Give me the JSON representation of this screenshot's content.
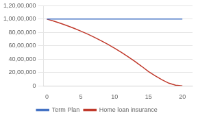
{
  "chart_data": {
    "type": "line",
    "series": [
      {
        "name": "Term Plan",
        "color": "#4472c4",
        "x": [
          0,
          20
        ],
        "values": [
          10000000,
          10000000
        ]
      },
      {
        "name": "Home loan insurance",
        "color": "#c0392b",
        "x": [
          0,
          1,
          2,
          3,
          4,
          5,
          6,
          7,
          8,
          9,
          10,
          11,
          12,
          13,
          14,
          15,
          16,
          17,
          18,
          19,
          20
        ],
        "values": [
          10000000,
          9700000,
          9370000,
          9010000,
          8620000,
          8200000,
          7760000,
          7280000,
          6770000,
          6220000,
          5640000,
          5020000,
          4360000,
          3660000,
          2920000,
          2140000,
          1500000,
          900000,
          400000,
          100000,
          0
        ]
      }
    ],
    "xlim": [
      -0.5,
      21.5
    ],
    "xticks": [
      0,
      5,
      10,
      15,
      20
    ],
    "ylim": [
      0,
      12000000
    ],
    "yticks": [
      0,
      {
        "value": 2000000,
        "label": "20,00,000"
      },
      {
        "value": 4000000,
        "label": "40,00,000"
      },
      {
        "value": 6000000,
        "label": "60,00,000"
      },
      {
        "value": 8000000,
        "label": "80,00,000"
      },
      {
        "value": 10000000,
        "label": "1,00,00,000"
      },
      {
        "value": 12000000,
        "label": "1,20,00,000"
      }
    ],
    "grid": "y",
    "legend": "bottom"
  }
}
